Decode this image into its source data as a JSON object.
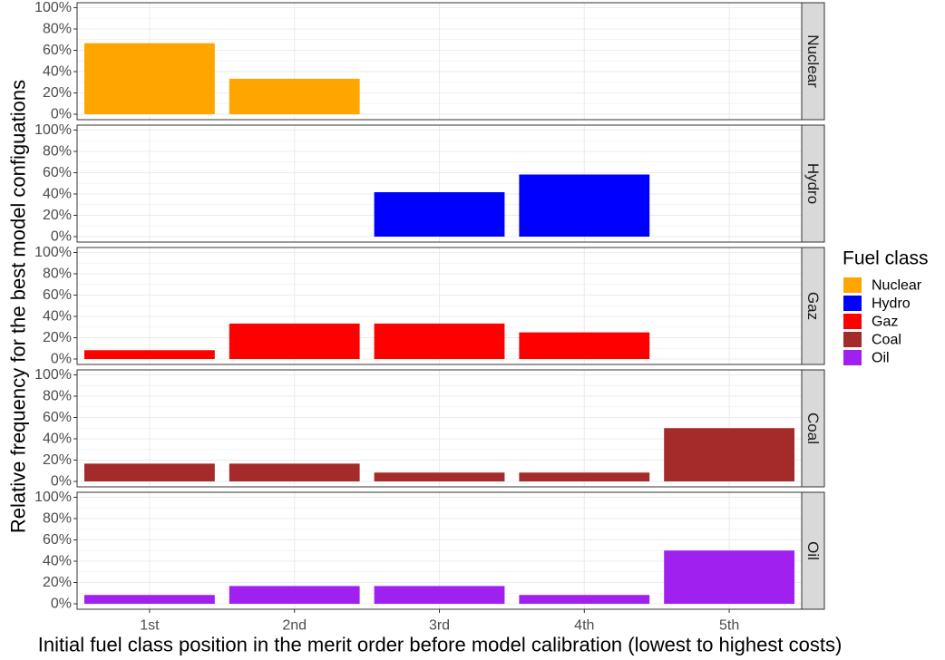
{
  "chart_data": {
    "type": "bar",
    "facets": "rows",
    "categories": [
      "1st",
      "2nd",
      "3rd",
      "4th",
      "5th"
    ],
    "xlabel": "Initial fuel class position in the merit order before model calibration (lowest to highest costs)",
    "ylabel": "Relative frequency for the best model configuations",
    "ylim": [
      0,
      1
    ],
    "yticks": [
      "0%",
      "20%",
      "40%",
      "60%",
      "80%",
      "100%"
    ],
    "grid": true,
    "legend": {
      "title": "Fuel class",
      "placement": "right",
      "entries": [
        "Nuclear",
        "Hydro",
        "Gaz",
        "Coal",
        "Oil"
      ]
    },
    "series": [
      {
        "name": "Nuclear",
        "color": "#FFA500",
        "values": [
          0.667,
          0.333,
          0,
          0,
          0
        ]
      },
      {
        "name": "Hydro",
        "color": "#0000FF",
        "values": [
          0,
          0,
          0.417,
          0.583,
          0
        ]
      },
      {
        "name": "Gaz",
        "color": "#FF0000",
        "values": [
          0.083,
          0.333,
          0.333,
          0.25,
          0
        ]
      },
      {
        "name": "Coal",
        "color": "#A52A2A",
        "values": [
          0.167,
          0.167,
          0.083,
          0.083,
          0.5
        ]
      },
      {
        "name": "Oil",
        "color": "#A020F0",
        "values": [
          0.083,
          0.167,
          0.167,
          0.083,
          0.5
        ]
      }
    ]
  }
}
